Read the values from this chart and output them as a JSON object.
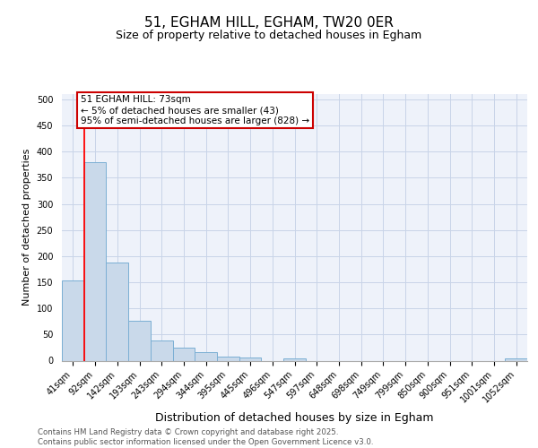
{
  "title1": "51, EGHAM HILL, EGHAM, TW20 0ER",
  "title2": "Size of property relative to detached houses in Egham",
  "xlabel": "Distribution of detached houses by size in Egham",
  "ylabel": "Number of detached properties",
  "bin_labels": [
    "41sqm",
    "92sqm",
    "142sqm",
    "193sqm",
    "243sqm",
    "294sqm",
    "344sqm",
    "395sqm",
    "445sqm",
    "496sqm",
    "547sqm",
    "597sqm",
    "648sqm",
    "698sqm",
    "749sqm",
    "799sqm",
    "850sqm",
    "900sqm",
    "951sqm",
    "1001sqm",
    "1052sqm"
  ],
  "bar_values": [
    153,
    380,
    188,
    76,
    38,
    25,
    17,
    7,
    6,
    0,
    5,
    0,
    0,
    0,
    0,
    0,
    0,
    0,
    0,
    0,
    5
  ],
  "bar_color": "#c9d9ea",
  "bar_edge_color": "#7bafd4",
  "grid_color": "#c8d4e8",
  "red_line_x": 0.5,
  "annotation_text": "51 EGHAM HILL: 73sqm\n← 5% of detached houses are smaller (43)\n95% of semi-detached houses are larger (828) →",
  "annotation_box_color": "#ffffff",
  "annotation_box_edge": "#cc0000",
  "ylim": [
    0,
    510
  ],
  "yticks": [
    0,
    50,
    100,
    150,
    200,
    250,
    300,
    350,
    400,
    450,
    500
  ],
  "footer_text": "Contains HM Land Registry data © Crown copyright and database right 2025.\nContains public sector information licensed under the Open Government Licence v3.0.",
  "bg_color": "#eef2fa",
  "fig_bg": "#ffffff",
  "title1_fontsize": 11,
  "title2_fontsize": 9,
  "ylabel_fontsize": 8,
  "xlabel_fontsize": 9,
  "tick_fontsize": 7,
  "annot_fontsize": 7.5,
  "footer_fontsize": 6.2
}
